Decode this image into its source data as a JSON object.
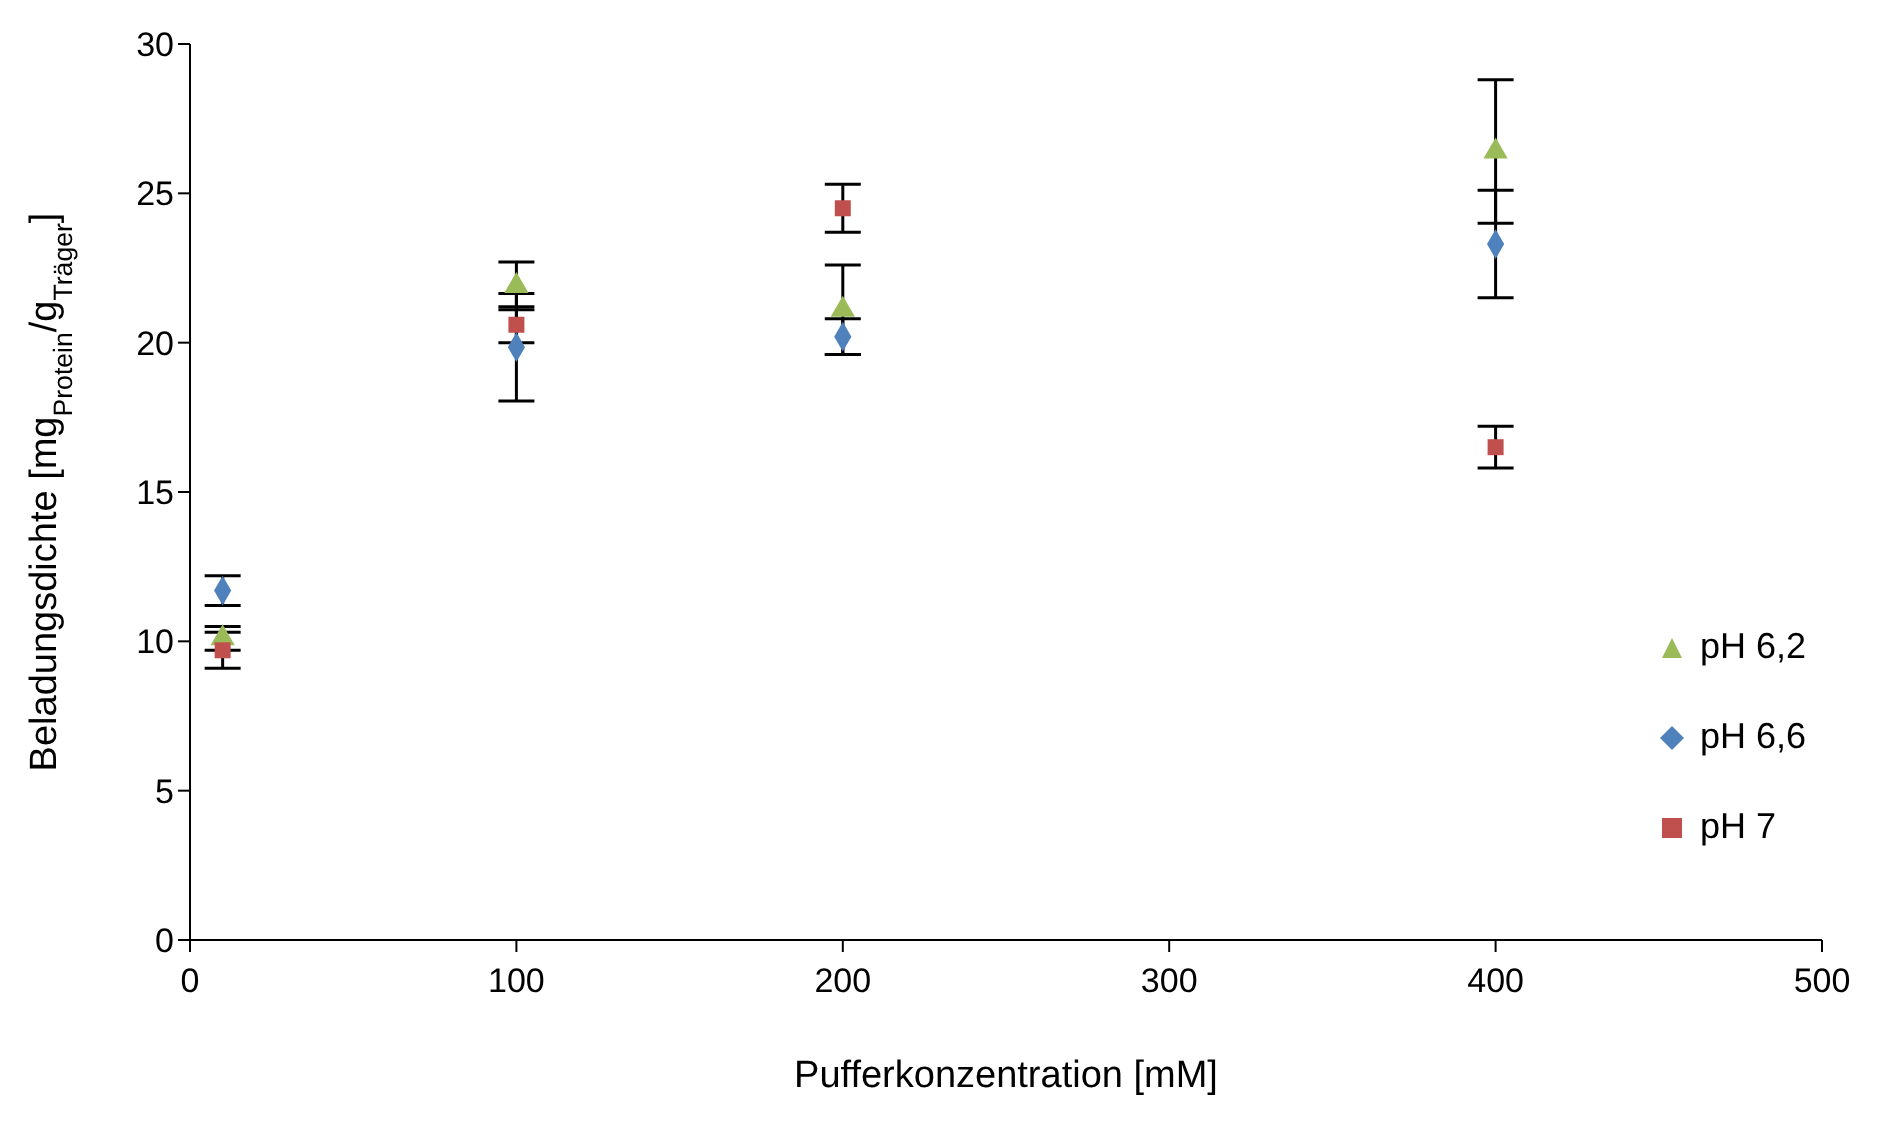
{
  "chart_data": {
    "type": "scatter",
    "xlabel": "Pufferkonzentration [mM]",
    "ylabel": "Beladungsdichte [mg$_{Protein}$/g$_{Träger}$]",
    "x": [
      10,
      100,
      200,
      400
    ],
    "xlim": [
      0,
      500
    ],
    "xticks": [
      0,
      100,
      200,
      300,
      400,
      500
    ],
    "ylim": [
      0,
      30
    ],
    "yticks": [
      0,
      5,
      10,
      15,
      20,
      25,
      30
    ],
    "grid": false,
    "legend": "bottom right",
    "series": [
      {
        "name": "pH 6,2",
        "color": "#9bbb59",
        "marker": "triangle",
        "values": [
          10.1,
          21.9,
          21.1,
          26.4
        ],
        "errors": [
          0.4,
          0.8,
          1.5,
          2.4
        ]
      },
      {
        "name": "pH 6,6",
        "color": "#4f81bd",
        "marker": "diamond",
        "values": [
          11.7,
          19.85,
          20.2,
          23.3
        ],
        "errors": [
          0.5,
          1.8,
          0.6,
          1.8
        ]
      },
      {
        "name": "pH 7",
        "color": "#c0504d",
        "marker": "square",
        "values": [
          9.7,
          20.6,
          24.5,
          16.5
        ],
        "errors": [
          0.6,
          0.6,
          0.8,
          0.7
        ]
      }
    ]
  }
}
